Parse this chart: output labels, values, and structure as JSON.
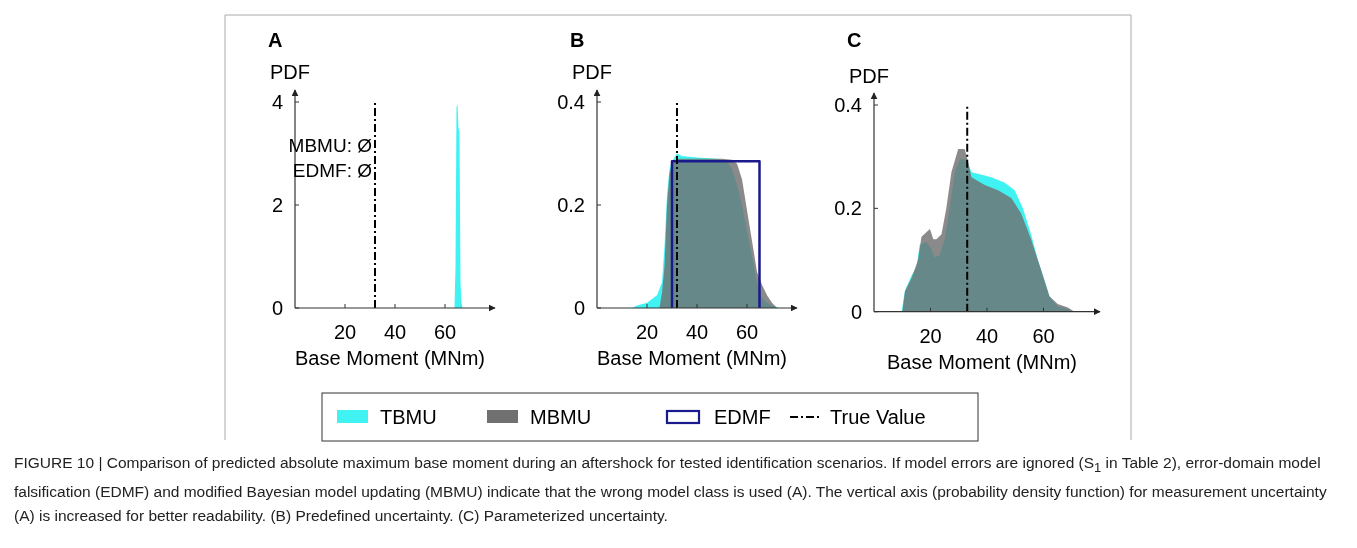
{
  "chart_data": [
    {
      "type": "area",
      "title": "A",
      "xlabel": "Base Moment (MNm)",
      "ylabel": "PDF",
      "xlim": [
        0,
        80
      ],
      "xticks": [
        20,
        40,
        60
      ],
      "ylim": [
        0,
        4
      ],
      "yticks": [
        0,
        2,
        4
      ],
      "legend": "bottom",
      "series": [
        {
          "name": "TBMU",
          "color": "#40f2f2",
          "x": [
            63.8,
            64.2,
            64.6,
            65,
            65.4,
            65.8,
            66.2,
            66.6,
            67
          ],
          "values": [
            0,
            0.8,
            3.9,
            3.95,
            3.5,
            3.4,
            0.5,
            0.1,
            0
          ]
        }
      ],
      "ref_lines": [
        {
          "axis": "x",
          "value": 32,
          "label": "True Value",
          "color": "#000000",
          "line_style": "dashdot"
        }
      ],
      "annotations": [
        "MBMU: Ø",
        "EDMF: Ø"
      ]
    },
    {
      "type": "area",
      "title": "B",
      "xlabel": "Base Moment (MNm)",
      "ylabel": "PDF",
      "xlim": [
        0,
        80
      ],
      "xticks": [
        20,
        40,
        60
      ],
      "ylim": [
        0,
        0.4
      ],
      "yticks": [
        0,
        0.2,
        0.4
      ],
      "legend": "bottom",
      "series": [
        {
          "name": "TBMU",
          "color": "#40f2f2",
          "x": [
            14,
            16,
            20,
            24,
            26,
            27,
            28,
            29,
            30,
            32,
            34,
            40,
            48,
            52,
            54,
            56,
            58,
            60,
            62,
            64,
            66,
            68,
            70,
            73
          ],
          "values": [
            0,
            0.005,
            0.01,
            0.025,
            0.05,
            0.12,
            0.22,
            0.27,
            0.285,
            0.3,
            0.295,
            0.292,
            0.29,
            0.285,
            0.27,
            0.24,
            0.2,
            0.15,
            0.1,
            0.05,
            0.02,
            0.01,
            0.005,
            0
          ]
        },
        {
          "name": "MBMU",
          "color": "#707070",
          "x": [
            25,
            26,
            27,
            28,
            29,
            30,
            32,
            40,
            50,
            54,
            56,
            58,
            60,
            62,
            64,
            66,
            68,
            70,
            72
          ],
          "values": [
            0,
            0.03,
            0.08,
            0.2,
            0.26,
            0.28,
            0.29,
            0.29,
            0.29,
            0.288,
            0.28,
            0.25,
            0.19,
            0.13,
            0.07,
            0.045,
            0.025,
            0.01,
            0
          ]
        },
        {
          "name": "EDMF",
          "type": "line",
          "color": "#1a1a8c",
          "x": [
            30,
            30,
            65,
            65
          ],
          "values": [
            0,
            0.285,
            0.285,
            0
          ]
        }
      ],
      "ref_lines": [
        {
          "axis": "x",
          "value": 32,
          "color": "#000000",
          "line_style": "dashdot"
        }
      ]
    },
    {
      "type": "area",
      "title": "C",
      "xlabel": "Base Moment (MNm)",
      "ylabel": "PDF",
      "xlim": [
        0,
        80
      ],
      "xticks": [
        20,
        40,
        60
      ],
      "ylim": [
        0,
        0.4
      ],
      "yticks": [
        0,
        0.2,
        0.4
      ],
      "legend": "bottom",
      "series": [
        {
          "name": "TBMU",
          "color": "#40f2f2",
          "x": [
            9.8,
            10.9,
            13.3,
            15,
            16.2,
            18.6,
            20.4,
            21.5,
            23.3,
            25,
            26.8,
            28.6,
            30.4,
            32.7,
            34.5,
            36.8,
            41.5,
            46.2,
            49.8,
            52.7,
            55.6,
            58,
            60.4,
            62.1,
            65,
            68.6,
            70
          ],
          "values": [
            0,
            0.04,
            0.07,
            0.085,
            0.13,
            0.135,
            0.12,
            0.105,
            0.11,
            0.14,
            0.2,
            0.27,
            0.295,
            0.295,
            0.27,
            0.267,
            0.26,
            0.25,
            0.235,
            0.2,
            0.15,
            0.1,
            0.06,
            0.03,
            0.01,
            0.005,
            0
          ]
        },
        {
          "name": "MBMU",
          "color": "#707070",
          "x": [
            10,
            11,
            13.3,
            15.6,
            16.8,
            19.8,
            21,
            22.1,
            23.9,
            25.6,
            27.4,
            29.8,
            32.1,
            33.3,
            34.5,
            39.2,
            43.9,
            48.6,
            52.1,
            55.6,
            59.2,
            62.1,
            65,
            68.6,
            71
          ],
          "values": [
            0,
            0.04,
            0.065,
            0.1,
            0.145,
            0.16,
            0.14,
            0.14,
            0.15,
            0.2,
            0.27,
            0.315,
            0.315,
            0.29,
            0.26,
            0.245,
            0.235,
            0.22,
            0.19,
            0.14,
            0.08,
            0.03,
            0.015,
            0.008,
            0
          ]
        }
      ],
      "ref_lines": [
        {
          "axis": "x",
          "value": 33,
          "color": "#000000",
          "line_style": "dashdot"
        }
      ],
      "annotations": [
        "FIGURE 10 | Comparison of predicted absolute maximum base moment during an aftershock for tested identification scenarios. If model errors are ignored (S$_{1}$ in Table 2), error-domain model falsification (EDMF) and modified Bayesian model updating (MBMU) indicate that the wrong model class is used (A). The vertical axis (probability density function) for measurement uncertainty (A) is increased for better readability. (B) Predefined uncertainty. (C) Parameterized uncertainty."
      ]
    }
  ]
}
